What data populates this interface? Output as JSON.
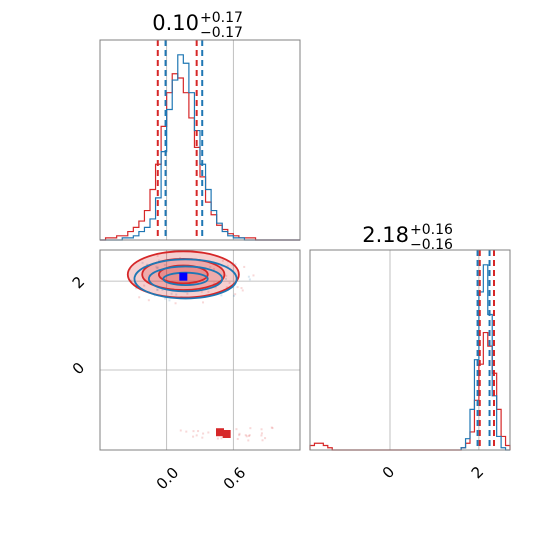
{
  "chart_data": [
    {
      "type": "histogram",
      "panel": "top-left",
      "title": {
        "value": "0.10",
        "plus": "+0.17",
        "minus": "−0.17"
      },
      "xlim": [
        -0.6,
        1.2
      ],
      "grid": true,
      "vlines": [
        {
          "series": "red",
          "x": -0.08
        },
        {
          "series": "red",
          "x": 0.27
        },
        {
          "series": "blue",
          "x": -0.01
        },
        {
          "series": "blue",
          "x": 0.32
        }
      ],
      "series": [
        {
          "color": "#d62728",
          "edges": [
            -0.6,
            -0.55,
            -0.5,
            -0.45,
            -0.4,
            -0.35,
            -0.3,
            -0.25,
            -0.2,
            -0.15,
            -0.1,
            -0.05,
            0,
            0.05,
            0.1,
            0.15,
            0.2,
            0.25,
            0.3,
            0.35,
            0.4,
            0.45,
            0.5,
            0.55,
            0.6,
            0.65,
            0.7,
            0.75,
            0.8,
            0.85,
            0.9,
            0.95,
            1,
            1.05,
            1.1,
            1.15,
            1.2
          ],
          "counts": [
            0,
            1,
            1,
            2,
            2,
            4,
            6,
            9,
            14,
            24,
            36,
            54,
            70,
            79,
            77,
            70,
            58,
            44,
            30,
            18,
            12,
            7,
            5,
            3,
            2,
            1,
            1,
            1,
            0,
            0,
            0,
            0,
            0,
            0,
            0,
            0
          ]
        },
        {
          "color": "#1f77b4",
          "edges": [
            -0.6,
            -0.55,
            -0.5,
            -0.45,
            -0.4,
            -0.35,
            -0.3,
            -0.25,
            -0.2,
            -0.15,
            -0.1,
            -0.05,
            0,
            0.05,
            0.1,
            0.15,
            0.2,
            0.25,
            0.3,
            0.35,
            0.4,
            0.45,
            0.5,
            0.55,
            0.6,
            0.65,
            0.7,
            0.75,
            0.8,
            0.85,
            0.9,
            0.95,
            1,
            1.05,
            1.1,
            1.15,
            1.2
          ],
          "counts": [
            0,
            0,
            0,
            0,
            1,
            1,
            2,
            4,
            6,
            10,
            20,
            42,
            62,
            76,
            88,
            84,
            70,
            52,
            36,
            24,
            14,
            8,
            4,
            2,
            1,
            1,
            0,
            0,
            0,
            0,
            0,
            0,
            0,
            0,
            0,
            0
          ]
        }
      ]
    },
    {
      "type": "histogram",
      "panel": "bottom-right",
      "title": {
        "value": "2.18",
        "plus": "+0.16",
        "minus": "−0.16"
      },
      "xlim": [
        -1.8,
        2.7
      ],
      "xticks": [
        "0",
        "2"
      ],
      "grid": true,
      "vlines": [
        {
          "series": "red",
          "x": 2.02
        },
        {
          "series": "red",
          "x": 2.34
        },
        {
          "series": "blue",
          "x": 1.97
        },
        {
          "series": "blue",
          "x": 2.24
        }
      ],
      "series": [
        {
          "color": "#d62728",
          "edges": [
            -1.8,
            -1.7,
            -1.6,
            -1.5,
            -1.4,
            -1.3,
            -1.2,
            1.6,
            1.7,
            1.8,
            1.9,
            2.0,
            2.1,
            2.2,
            2.3,
            2.4,
            2.5,
            2.6,
            2.7
          ],
          "counts": [
            2,
            3,
            3,
            2,
            1,
            0,
            0,
            1,
            3,
            8,
            22,
            38,
            52,
            46,
            34,
            18,
            6,
            2
          ]
        },
        {
          "color": "#1f77b4",
          "edges": [
            1.6,
            1.7,
            1.8,
            1.9,
            2.0,
            2.1,
            2.2,
            2.3,
            2.4,
            2.5,
            2.6,
            2.7
          ],
          "counts": [
            1,
            5,
            18,
            40,
            70,
            82,
            60,
            24,
            6,
            1,
            0
          ]
        }
      ]
    },
    {
      "type": "scatter",
      "panel": "bottom-left",
      "xlim": [
        -0.6,
        1.2
      ],
      "ylim": [
        -1.8,
        2.7
      ],
      "xticks": [
        "0.0",
        "0.6"
      ],
      "yticks": [
        "0",
        "2"
      ],
      "grid": true,
      "contours": [
        {
          "color": "#d62728",
          "cx": 0.15,
          "cy": 2.15,
          "rx": [
            0.5,
            0.37,
            0.22
          ],
          "ry": [
            0.52,
            0.35,
            0.2
          ]
        },
        {
          "color": "#1f77b4",
          "cx": 0.17,
          "cy": 2.05,
          "rx": [
            0.46,
            0.33,
            0.2
          ],
          "ry": [
            0.44,
            0.28,
            0.14
          ]
        }
      ],
      "points": [
        {
          "color": "#d62728",
          "x": 0.48,
          "y": -1.4
        },
        {
          "color": "#d62728",
          "x": 0.54,
          "y": -1.44
        },
        {
          "color": "#0000ff",
          "x": 0.15,
          "y": 2.1
        }
      ]
    }
  ]
}
